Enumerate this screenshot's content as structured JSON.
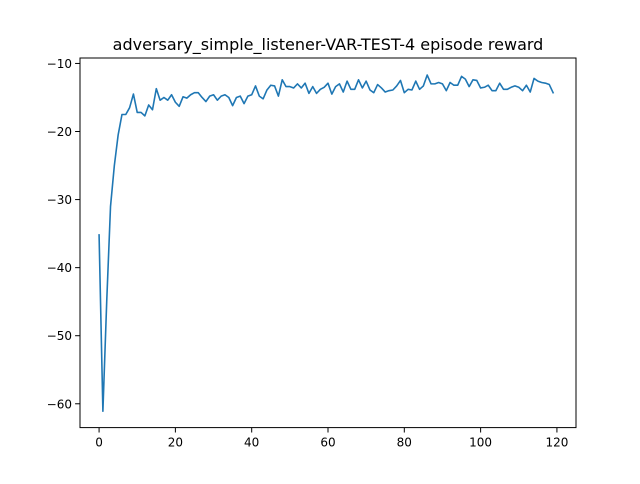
{
  "chart_data": {
    "type": "line",
    "title": "adversary_simple_listener-VAR-TEST-4 episode reward",
    "xlabel": "",
    "ylabel": "",
    "xlim": [
      -5,
      125
    ],
    "ylim": [
      -63.5,
      -9.2
    ],
    "xticks": [
      0,
      20,
      40,
      60,
      80,
      100,
      120
    ],
    "yticks": [
      -60,
      -50,
      -40,
      -30,
      -20,
      -10
    ],
    "xtick_labels": [
      "0",
      "20",
      "40",
      "60",
      "80",
      "100",
      "120"
    ],
    "ytick_labels": [
      "−60",
      "−50",
      "−40",
      "−30",
      "−20",
      "−10"
    ],
    "grid": false,
    "legend": "none",
    "series": [
      {
        "color": "#1f77b4",
        "x": [
          0,
          1,
          2,
          3,
          4,
          5,
          6,
          7,
          8,
          9,
          10,
          11,
          12,
          13,
          14,
          15,
          16,
          17,
          18,
          19,
          20,
          21,
          22,
          23,
          24,
          25,
          26,
          27,
          28,
          29,
          30,
          31,
          32,
          33,
          34,
          35,
          36,
          37,
          38,
          39,
          40,
          41,
          42,
          43,
          44,
          45,
          46,
          47,
          48,
          49,
          50,
          51,
          52,
          53,
          54,
          55,
          56,
          57,
          58,
          59,
          60,
          61,
          62,
          63,
          64,
          65,
          66,
          67,
          68,
          69,
          70,
          71,
          72,
          73,
          74,
          75,
          76,
          77,
          78,
          79,
          80,
          81,
          82,
          83,
          84,
          85,
          86,
          87,
          88,
          89,
          90,
          91,
          92,
          93,
          94,
          95,
          96,
          97,
          98,
          99,
          100,
          101,
          102,
          103,
          104,
          105,
          106,
          107,
          108,
          109,
          110,
          111,
          112,
          113,
          114,
          115,
          116,
          117,
          118,
          119
        ],
        "values": [
          -35.2,
          -61.1,
          -45.0,
          -31.0,
          -25.0,
          -20.5,
          -17.5,
          -17.5,
          -16.5,
          -14.5,
          -17.2,
          -17.2,
          -17.7,
          -16.1,
          -16.8,
          -13.7,
          -15.4,
          -15.0,
          -15.4,
          -14.6,
          -15.7,
          -16.3,
          -14.9,
          -15.1,
          -14.6,
          -14.3,
          -14.3,
          -15.0,
          -15.6,
          -14.8,
          -14.6,
          -15.4,
          -14.8,
          -14.6,
          -15.0,
          -16.2,
          -15.0,
          -14.8,
          -15.9,
          -14.8,
          -14.6,
          -13.3,
          -14.8,
          -15.2,
          -13.9,
          -13.2,
          -13.3,
          -14.8,
          -12.4,
          -13.4,
          -13.4,
          -13.6,
          -13.0,
          -13.6,
          -12.9,
          -14.4,
          -13.4,
          -14.4,
          -13.8,
          -13.5,
          -12.9,
          -14.5,
          -13.4,
          -13.0,
          -14.2,
          -12.6,
          -13.8,
          -13.8,
          -12.4,
          -13.6,
          -12.6,
          -13.9,
          -14.3,
          -13.1,
          -13.6,
          -14.2,
          -14.0,
          -13.9,
          -13.3,
          -12.5,
          -14.3,
          -13.8,
          -13.9,
          -12.6,
          -13.8,
          -13.3,
          -11.7,
          -13.0,
          -13.0,
          -12.8,
          -13.0,
          -14.0,
          -12.8,
          -13.2,
          -13.2,
          -11.9,
          -12.3,
          -13.4,
          -12.4,
          -12.5,
          -13.6,
          -13.5,
          -13.2,
          -14.0,
          -14.0,
          -12.9,
          -13.8,
          -13.8,
          -13.5,
          -13.3,
          -13.5,
          -14.0,
          -13.2,
          -14.2,
          -12.2,
          -12.6,
          -12.8,
          -12.9,
          -13.1,
          -14.3
        ]
      }
    ]
  }
}
